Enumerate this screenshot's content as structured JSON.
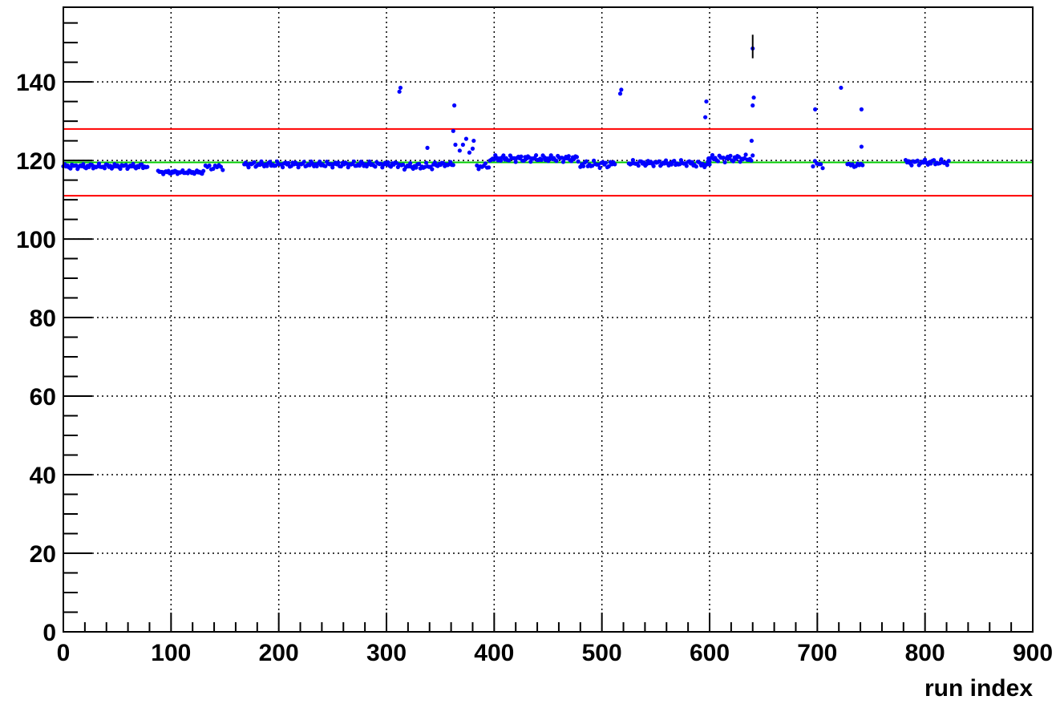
{
  "chart_data": {
    "type": "scatter",
    "title": "",
    "xlabel": "run index",
    "ylabel": "",
    "xlim": [
      0,
      900
    ],
    "ylim": [
      0,
      159
    ],
    "x_ticks": [
      "0",
      "100",
      "200",
      "300",
      "400",
      "500",
      "600",
      "700",
      "800",
      "900"
    ],
    "y_ticks": [
      "0",
      "20",
      "40",
      "60",
      "80",
      "100",
      "120",
      "140"
    ],
    "grid": true,
    "reference_lines": [
      {
        "role": "mean",
        "y": 119.5,
        "color": "#00cc00"
      },
      {
        "role": "upper-limit",
        "y": 128,
        "color": "#ff0000"
      },
      {
        "role": "lower-limit",
        "y": 111,
        "color": "#ff0000"
      }
    ],
    "marker_color": "#0000ff",
    "error_bar": {
      "x": 640,
      "y": 148.5,
      "low": 146,
      "high": 152
    },
    "outliers": [
      [
        312,
        137.5
      ],
      [
        313,
        138.5
      ],
      [
        338,
        123.2
      ],
      [
        363,
        134
      ],
      [
        362,
        127.5
      ],
      [
        364,
        124
      ],
      [
        368,
        122.5
      ],
      [
        371,
        124
      ],
      [
        374,
        125.5
      ],
      [
        377,
        122
      ],
      [
        380,
        123
      ],
      [
        381,
        125
      ],
      [
        517,
        137
      ],
      [
        518,
        138
      ],
      [
        596,
        131
      ],
      [
        597,
        135
      ],
      [
        599,
        120.5
      ],
      [
        640,
        148.5
      ],
      [
        640,
        134
      ],
      [
        641,
        136
      ],
      [
        639,
        125
      ],
      [
        698,
        133
      ],
      [
        722,
        138.5
      ],
      [
        741,
        133
      ],
      [
        741,
        123.5
      ]
    ],
    "segments": [
      {
        "x0": 0,
        "x1": 78,
        "y": 118.5,
        "n": 60,
        "amp": 0.7,
        "phase": 0
      },
      {
        "x0": 88,
        "x1": 130,
        "y": 117,
        "n": 36,
        "amp": 0.5,
        "phase": 1
      },
      {
        "x0": 132,
        "x1": 148,
        "y": 118.3,
        "n": 10,
        "amp": 0.8,
        "phase": 2
      },
      {
        "x0": 168,
        "x1": 312,
        "y": 119,
        "n": 110,
        "amp": 0.8,
        "phase": 3
      },
      {
        "x0": 314,
        "x1": 345,
        "y": 118.5,
        "n": 24,
        "amp": 0.9,
        "phase": 4
      },
      {
        "x0": 345,
        "x1": 362,
        "y": 119,
        "n": 14,
        "amp": 0.6,
        "phase": 5
      },
      {
        "x0": 384,
        "x1": 395,
        "y": 118.5,
        "n": 8,
        "amp": 0.8,
        "phase": 6
      },
      {
        "x0": 396,
        "x1": 478,
        "y": 120.5,
        "n": 66,
        "amp": 0.9,
        "phase": 7
      },
      {
        "x0": 480,
        "x1": 512,
        "y": 119,
        "n": 24,
        "amp": 1.0,
        "phase": 8
      },
      {
        "x0": 525,
        "x1": 585,
        "y": 119.3,
        "n": 48,
        "amp": 0.8,
        "phase": 9
      },
      {
        "x0": 586,
        "x1": 600,
        "y": 119,
        "n": 10,
        "amp": 0.9,
        "phase": 10
      },
      {
        "x0": 600,
        "x1": 640,
        "y": 120.5,
        "n": 32,
        "amp": 1.0,
        "phase": 11
      },
      {
        "x0": 696,
        "x1": 705,
        "y": 119,
        "n": 6,
        "amp": 1.0,
        "phase": 12
      },
      {
        "x0": 728,
        "x1": 742,
        "y": 118.8,
        "n": 10,
        "amp": 0.6,
        "phase": 13
      },
      {
        "x0": 782,
        "x1": 822,
        "y": 119.5,
        "n": 30,
        "amp": 0.8,
        "phase": 14
      }
    ]
  }
}
